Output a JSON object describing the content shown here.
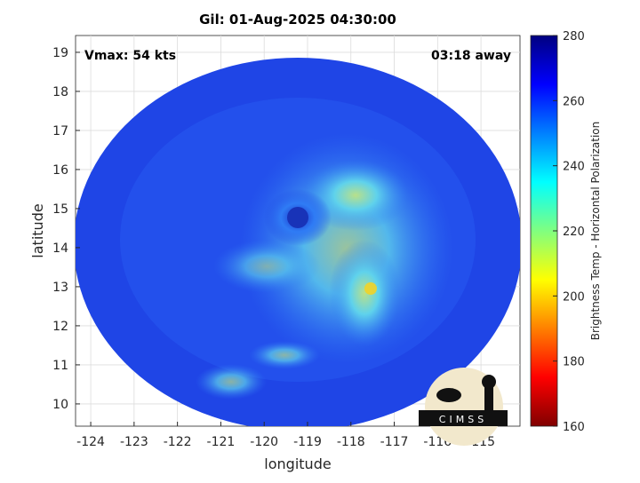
{
  "chart_data": {
    "type": "image",
    "title": "Gil: 01-Aug-2025 04:30:00",
    "annotations": [
      "Vmax: 54 kts",
      "03:18 away"
    ],
    "xlabel": "longitude",
    "ylabel": "latitude",
    "xlim": [
      -124.35,
      -114.1
    ],
    "ylim": [
      9.43,
      19.43
    ],
    "xticks": [
      -124,
      -123,
      -122,
      -121,
      -120,
      -119,
      -118,
      -117,
      -116,
      -115
    ],
    "yticks": [
      10,
      11,
      12,
      13,
      14,
      15,
      16,
      17,
      18,
      19
    ],
    "grid": true,
    "colorbar": {
      "label": "Brightness Temp - Horizontal Polarization",
      "clim": [
        160,
        280
      ],
      "ticks": [
        160,
        180,
        200,
        220,
        240,
        260,
        280
      ],
      "colormap": [
        "#800000",
        "#ff0000",
        "#ff8000",
        "#ffff00",
        "#80ff80",
        "#00ffff",
        "#0080ff",
        "#0000ff",
        "#000080"
      ]
    },
    "logo": "CIMSS"
  }
}
